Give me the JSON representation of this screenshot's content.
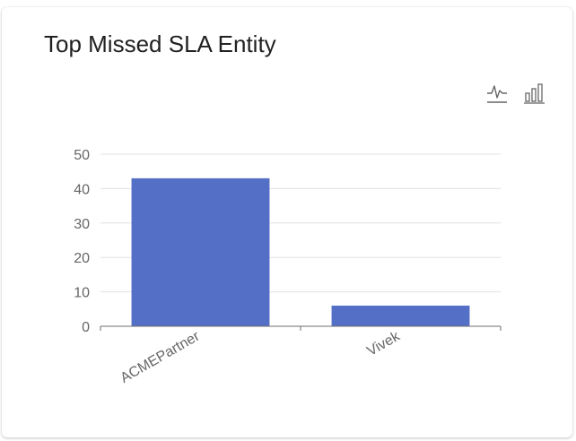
{
  "card": {
    "title": "Top Missed SLA Entity"
  },
  "toolbar": {
    "line_icon": "line-chart-icon",
    "bar_icon": "bar-chart-icon"
  },
  "colors": {
    "bar": "#5470c6",
    "grid": "#e0e0e0",
    "axis": "#6e6e6e",
    "text": "#666666",
    "title": "#212121",
    "icon": "#666666"
  },
  "chart_data": {
    "type": "bar",
    "title": "",
    "xlabel": "",
    "ylabel": "",
    "categories": [
      "ACMEPartner",
      "Vivek"
    ],
    "values": [
      43,
      6
    ],
    "ylim": [
      0,
      50
    ],
    "yticks": [
      0,
      10,
      20,
      30,
      40,
      50
    ],
    "grid": true,
    "legend": "none"
  }
}
